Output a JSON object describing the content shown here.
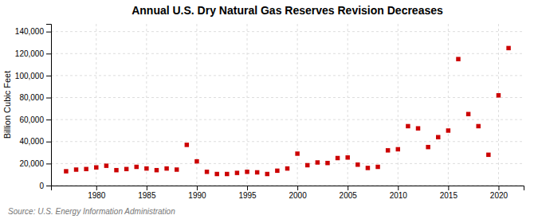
{
  "chart_data": {
    "type": "scatter",
    "title": "Annual U.S. Dry Natural Gas Reserves Revision Decreases",
    "ylabel": "Billion Cubic Feet",
    "source": "Source: U.S. Energy Information Administration",
    "x": [
      1977,
      1978,
      1979,
      1980,
      1981,
      1982,
      1983,
      1984,
      1985,
      1986,
      1987,
      1988,
      1989,
      1990,
      1991,
      1992,
      1993,
      1994,
      1995,
      1996,
      1997,
      1998,
      1999,
      2000,
      2001,
      2002,
      2003,
      2004,
      2005,
      2006,
      2007,
      2008,
      2009,
      2010,
      2011,
      2012,
      2013,
      2014,
      2015,
      2016,
      2017,
      2018,
      2019,
      2020,
      2021
    ],
    "values": [
      13000,
      14500,
      15000,
      16500,
      18000,
      14000,
      15000,
      17000,
      15500,
      14000,
      15500,
      14500,
      37000,
      22000,
      12500,
      10500,
      10500,
      11500,
      12500,
      12000,
      10500,
      13500,
      15500,
      29000,
      18500,
      21000,
      20500,
      25000,
      25500,
      19000,
      16000,
      17000,
      32000,
      33000,
      54000,
      52000,
      35000,
      44000,
      50000,
      115000,
      65000,
      54000,
      28000,
      82000,
      125000
    ],
    "color": "#cc0000",
    "marker": "square",
    "xlim": [
      1975.5,
      2022.5
    ],
    "xticks": [
      1980,
      1985,
      1990,
      1995,
      2000,
      2005,
      2010,
      2015,
      2020
    ],
    "ylim": [
      0,
      147000
    ],
    "yticks": [
      0,
      {
        "value": 20000,
        "label": "20,000"
      },
      {
        "value": 40000,
        "label": "40,000"
      },
      {
        "value": 60000,
        "label": "60,000"
      },
      {
        "value": 80000,
        "label": "80,000"
      },
      {
        "value": 100000,
        "label": "100,000"
      },
      {
        "value": 120000,
        "label": "120,000"
      },
      {
        "value": 140000,
        "label": "140,000"
      }
    ],
    "grid": true
  }
}
